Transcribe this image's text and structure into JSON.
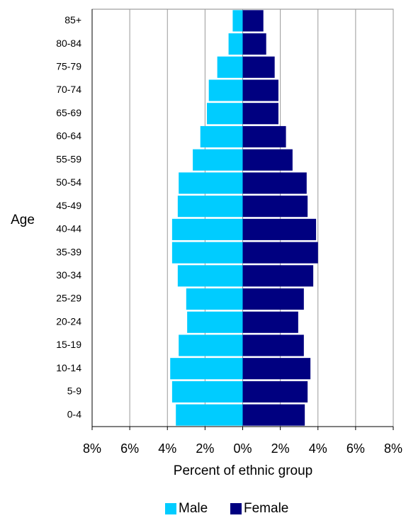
{
  "chart_data": {
    "type": "pyramid",
    "y_label": "Age",
    "x_label": "Percent of ethnic group",
    "categories": [
      "0-4",
      "5-9",
      "10-14",
      "15-19",
      "20-24",
      "25-29",
      "30-34",
      "35-39",
      "40-44",
      "45-49",
      "50-54",
      "55-59",
      "60-64",
      "65-69",
      "70-74",
      "75-79",
      "80-84",
      "85+"
    ],
    "series": [
      {
        "name": "Male",
        "color": "#00ccff",
        "values": [
          -3.55,
          -3.75,
          -3.85,
          -3.4,
          -2.95,
          -3.0,
          -3.45,
          -3.75,
          -3.75,
          -3.45,
          -3.4,
          -2.65,
          -2.25,
          -1.9,
          -1.8,
          -1.35,
          -0.75,
          -0.53
        ]
      },
      {
        "name": "Female",
        "color": "#000080",
        "values": [
          3.3,
          3.45,
          3.6,
          3.25,
          2.95,
          3.25,
          3.75,
          4.0,
          3.9,
          3.45,
          3.4,
          2.65,
          2.3,
          1.9,
          1.9,
          1.7,
          1.25,
          1.1
        ]
      }
    ],
    "xlim": [
      -8,
      8
    ],
    "xticks": [
      {
        "value": -8,
        "label": "8%"
      },
      {
        "value": -6,
        "label": "6%"
      },
      {
        "value": -4,
        "label": "4%"
      },
      {
        "value": -2,
        "label": "2%"
      },
      {
        "value": 0,
        "label": "0%"
      },
      {
        "value": 2,
        "label": "2%"
      },
      {
        "value": 4,
        "label": "4%"
      },
      {
        "value": 6,
        "label": "6%"
      },
      {
        "value": 8,
        "label": "8%"
      }
    ],
    "grid": true,
    "legend": "bottom"
  }
}
